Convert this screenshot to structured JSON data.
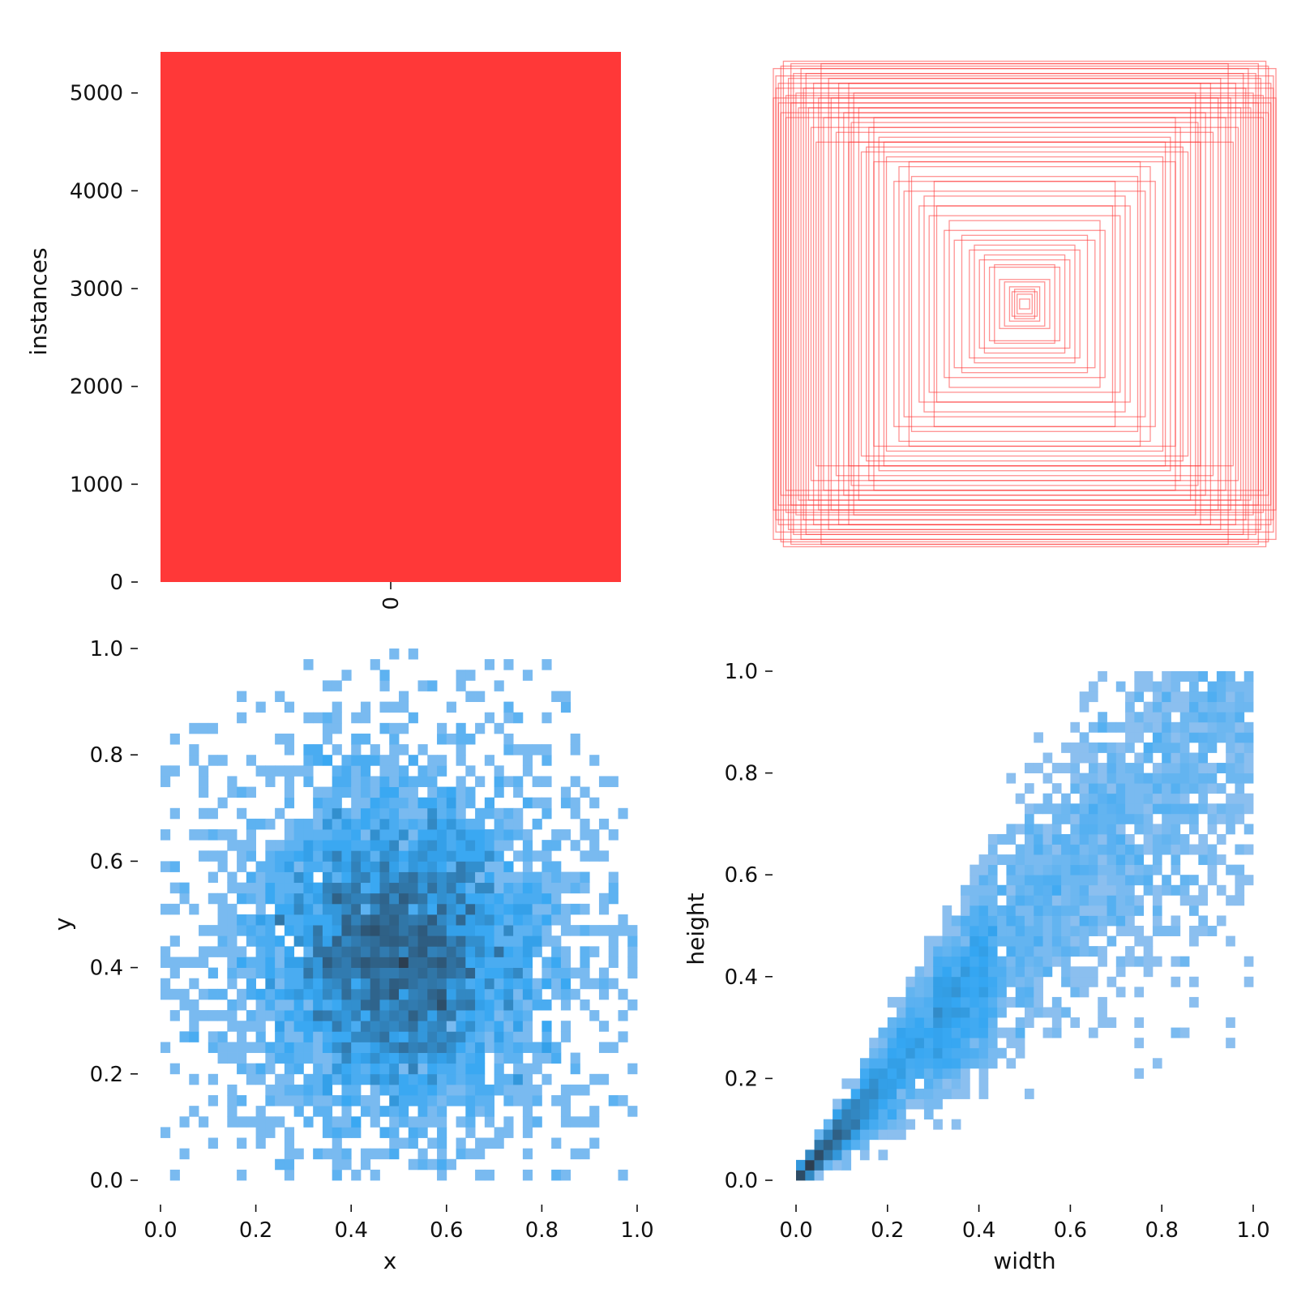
{
  "chart_data": [
    {
      "type": "bar",
      "panel": "instances-per-class",
      "categories": [
        "0"
      ],
      "values": [
        5420
      ],
      "ylabel": "instances",
      "xlabel": "",
      "ylim": [
        0,
        5420
      ],
      "yticks": [
        "0",
        "1000",
        "2000",
        "3000",
        "4000",
        "5000"
      ],
      "bar_color": "#ff3838",
      "grid": false
    },
    {
      "type": "scatter",
      "panel": "bounding-box-overlay",
      "description_units": "normalized box width and height, all centred at 0.5",
      "boxes": [
        [
          0.02,
          0.02
        ],
        [
          0.97,
          0.97
        ],
        [
          1.0,
          0.96
        ],
        [
          0.98,
          0.9
        ],
        [
          0.95,
          0.85
        ],
        [
          0.92,
          0.94
        ],
        [
          0.9,
          0.8
        ],
        [
          0.88,
          0.88
        ],
        [
          0.85,
          0.72
        ],
        [
          0.82,
          0.84
        ],
        [
          0.8,
          0.76
        ],
        [
          0.78,
          0.92
        ],
        [
          0.75,
          0.7
        ],
        [
          0.72,
          0.78
        ],
        [
          0.7,
          0.66
        ],
        [
          0.68,
          0.86
        ],
        [
          0.65,
          0.62
        ],
        [
          0.62,
          0.72
        ],
        [
          0.6,
          0.58
        ],
        [
          0.58,
          0.68
        ],
        [
          0.55,
          0.6
        ],
        [
          0.52,
          0.5
        ],
        [
          0.5,
          0.56
        ],
        [
          0.48,
          0.46
        ],
        [
          0.45,
          0.52
        ],
        [
          0.42,
          0.4
        ],
        [
          0.4,
          0.44
        ],
        [
          0.38,
          0.36
        ],
        [
          0.35,
          0.4
        ],
        [
          0.32,
          0.3
        ],
        [
          0.3,
          0.34
        ],
        [
          0.28,
          0.26
        ],
        [
          0.25,
          0.28
        ],
        [
          0.22,
          0.22
        ],
        [
          0.2,
          0.24
        ],
        [
          0.18,
          0.18
        ],
        [
          0.16,
          0.2
        ],
        [
          0.14,
          0.15
        ],
        [
          0.12,
          0.16
        ],
        [
          0.1,
          0.1
        ],
        [
          0.08,
          0.09
        ],
        [
          0.06,
          0.07
        ],
        [
          0.05,
          0.05
        ],
        [
          0.04,
          0.06
        ],
        [
          0.03,
          0.04
        ],
        [
          0.96,
          0.99
        ],
        [
          0.99,
          0.88
        ],
        [
          0.94,
          0.92
        ],
        [
          0.91,
          0.86
        ],
        [
          0.87,
          0.94
        ],
        [
          0.84,
          0.9
        ],
        [
          0.86,
          0.8
        ],
        [
          0.93,
          0.82
        ],
        [
          0.97,
          0.78
        ],
        [
          0.99,
          0.93
        ],
        [
          0.89,
          0.96
        ],
        [
          0.83,
          0.66
        ],
        [
          0.77,
          0.84
        ],
        [
          0.74,
          0.9
        ],
        [
          0.69,
          0.74
        ],
        [
          0.66,
          0.8
        ],
        [
          0.63,
          0.64
        ],
        [
          0.6,
          0.76
        ],
        [
          0.56,
          0.66
        ],
        [
          0.46,
          0.58
        ],
        [
          0.36,
          0.5
        ],
        [
          0.98,
          0.82
        ],
        [
          0.95,
          0.76
        ],
        [
          1.0,
          0.84
        ],
        [
          0.93,
          0.98
        ],
        [
          0.81,
          0.98
        ],
        [
          0.7,
          0.9
        ]
      ],
      "box_color": "#ff3838"
    },
    {
      "type": "heatmap",
      "panel": "center-distribution",
      "xlabel": "x",
      "ylabel": "y",
      "xlim": [
        0,
        1
      ],
      "ylim": [
        0,
        1
      ],
      "xticks": [
        "0.0",
        "0.2",
        "0.4",
        "0.6",
        "0.8",
        "1.0"
      ],
      "yticks": [
        "0.0",
        "0.2",
        "0.4",
        "0.6",
        "0.8",
        "1.0"
      ],
      "grid": false,
      "bins": 50,
      "seed": 7,
      "count": 5420,
      "mean": [
        0.5,
        0.43
      ],
      "spread": [
        0.14,
        0.15
      ],
      "low_color": "#a9c8ee",
      "mid_color": "#34a6f2",
      "high_color": "#2c3e50"
    },
    {
      "type": "heatmap",
      "panel": "size-distribution",
      "xlabel": "width",
      "ylabel": "height",
      "xlim": [
        0,
        1
      ],
      "ylim": [
        0,
        1
      ],
      "xticks": [
        "0.0",
        "0.2",
        "0.4",
        "0.6",
        "0.8",
        "1.0"
      ],
      "yticks": [
        "0.0",
        "0.2",
        "0.4",
        "0.6",
        "0.8",
        "1.0"
      ],
      "grid": false,
      "bins": 50,
      "seed": 11,
      "count": 5420,
      "ratio_spread": 0.22,
      "low_color": "#a9c8ee",
      "mid_color": "#34a6f2",
      "high_color": "#2c3e50"
    }
  ]
}
